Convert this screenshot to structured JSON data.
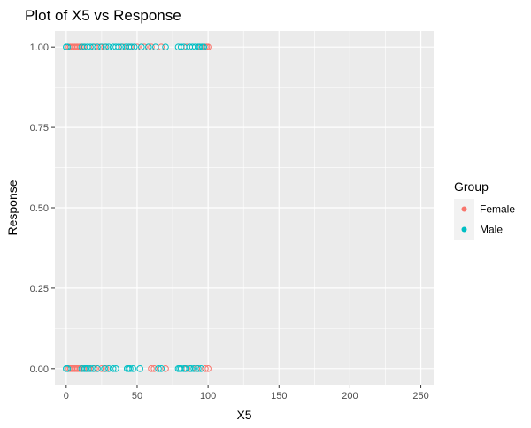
{
  "chart_data": {
    "type": "scatter",
    "title": "Plot of X5 vs Response",
    "xlabel": "X5",
    "ylabel": "Response",
    "xlim": [
      -8,
      259
    ],
    "ylim": [
      -0.05,
      1.05
    ],
    "x_ticks": [
      0,
      50,
      100,
      150,
      200,
      250
    ],
    "x_tick_labels": [
      "0",
      "50",
      "100",
      "150",
      "200",
      "250"
    ],
    "y_ticks": [
      0,
      0.25,
      0.5,
      0.75,
      1
    ],
    "y_tick_labels": [
      "0.00",
      "0.25",
      "0.50",
      "0.75",
      "1.00"
    ],
    "grid": true,
    "legend": {
      "title": "Group",
      "position": "right",
      "entries": [
        "Female",
        "Male"
      ]
    },
    "series": [
      {
        "name": "Female",
        "color": "#F8766D",
        "points": [
          {
            "x": 2,
            "y": 1
          },
          {
            "x": 3,
            "y": 1
          },
          {
            "x": 4,
            "y": 1
          },
          {
            "x": 5,
            "y": 1
          },
          {
            "x": 6,
            "y": 1
          },
          {
            "x": 7,
            "y": 1
          },
          {
            "x": 8,
            "y": 1
          },
          {
            "x": 9,
            "y": 1
          },
          {
            "x": 10,
            "y": 1
          },
          {
            "x": 12,
            "y": 1
          },
          {
            "x": 20,
            "y": 1
          },
          {
            "x": 24,
            "y": 1
          },
          {
            "x": 27,
            "y": 1
          },
          {
            "x": 40,
            "y": 1
          },
          {
            "x": 45,
            "y": 1
          },
          {
            "x": 50,
            "y": 1
          },
          {
            "x": 55,
            "y": 1
          },
          {
            "x": 60,
            "y": 1
          },
          {
            "x": 67,
            "y": 1
          },
          {
            "x": 85,
            "y": 1
          },
          {
            "x": 95,
            "y": 1
          },
          {
            "x": 98,
            "y": 1
          },
          {
            "x": 99,
            "y": 1
          },
          {
            "x": 100,
            "y": 1
          },
          {
            "x": 2,
            "y": 0
          },
          {
            "x": 3,
            "y": 0
          },
          {
            "x": 4,
            "y": 0
          },
          {
            "x": 5,
            "y": 0
          },
          {
            "x": 6,
            "y": 0
          },
          {
            "x": 7,
            "y": 0
          },
          {
            "x": 8,
            "y": 0
          },
          {
            "x": 9,
            "y": 0
          },
          {
            "x": 10,
            "y": 0
          },
          {
            "x": 12,
            "y": 0
          },
          {
            "x": 16,
            "y": 0
          },
          {
            "x": 20,
            "y": 0
          },
          {
            "x": 25,
            "y": 0
          },
          {
            "x": 28,
            "y": 0
          },
          {
            "x": 60,
            "y": 0
          },
          {
            "x": 62,
            "y": 0
          },
          {
            "x": 70,
            "y": 0
          },
          {
            "x": 85,
            "y": 0
          },
          {
            "x": 92,
            "y": 0
          },
          {
            "x": 98,
            "y": 0
          },
          {
            "x": 100,
            "y": 0
          }
        ]
      },
      {
        "name": "Male",
        "color": "#00BFC4",
        "points": [
          {
            "x": 0,
            "y": 1
          },
          {
            "x": 1,
            "y": 1
          },
          {
            "x": 11,
            "y": 1
          },
          {
            "x": 13,
            "y": 1
          },
          {
            "x": 15,
            "y": 1
          },
          {
            "x": 17,
            "y": 1
          },
          {
            "x": 19,
            "y": 1
          },
          {
            "x": 22,
            "y": 1
          },
          {
            "x": 25,
            "y": 1
          },
          {
            "x": 28,
            "y": 1
          },
          {
            "x": 30,
            "y": 1
          },
          {
            "x": 33,
            "y": 1
          },
          {
            "x": 35,
            "y": 1
          },
          {
            "x": 37,
            "y": 1
          },
          {
            "x": 39,
            "y": 1
          },
          {
            "x": 42,
            "y": 1
          },
          {
            "x": 44,
            "y": 1
          },
          {
            "x": 46,
            "y": 1
          },
          {
            "x": 48,
            "y": 1
          },
          {
            "x": 53,
            "y": 1
          },
          {
            "x": 58,
            "y": 1
          },
          {
            "x": 63,
            "y": 1
          },
          {
            "x": 70,
            "y": 1
          },
          {
            "x": 79,
            "y": 1
          },
          {
            "x": 81,
            "y": 1
          },
          {
            "x": 83,
            "y": 1
          },
          {
            "x": 87,
            "y": 1
          },
          {
            "x": 89,
            "y": 1
          },
          {
            "x": 91,
            "y": 1
          },
          {
            "x": 93,
            "y": 1
          },
          {
            "x": 94,
            "y": 1
          },
          {
            "x": 96,
            "y": 1
          },
          {
            "x": 97,
            "y": 1
          },
          {
            "x": 0,
            "y": 0
          },
          {
            "x": 1,
            "y": 0
          },
          {
            "x": 11,
            "y": 0
          },
          {
            "x": 13,
            "y": 0
          },
          {
            "x": 14,
            "y": 0
          },
          {
            "x": 15,
            "y": 0
          },
          {
            "x": 17,
            "y": 0
          },
          {
            "x": 19,
            "y": 0
          },
          {
            "x": 22,
            "y": 0
          },
          {
            "x": 27,
            "y": 0
          },
          {
            "x": 30,
            "y": 0
          },
          {
            "x": 33,
            "y": 0
          },
          {
            "x": 35,
            "y": 0
          },
          {
            "x": 43,
            "y": 0
          },
          {
            "x": 44,
            "y": 0
          },
          {
            "x": 45,
            "y": 0
          },
          {
            "x": 47,
            "y": 0
          },
          {
            "x": 52,
            "y": 0
          },
          {
            "x": 65,
            "y": 0
          },
          {
            "x": 67,
            "y": 0
          },
          {
            "x": 79,
            "y": 0
          },
          {
            "x": 80,
            "y": 0
          },
          {
            "x": 81,
            "y": 0
          },
          {
            "x": 83,
            "y": 0
          },
          {
            "x": 84,
            "y": 0
          },
          {
            "x": 87,
            "y": 0
          },
          {
            "x": 88,
            "y": 0
          },
          {
            "x": 90,
            "y": 0
          },
          {
            "x": 93,
            "y": 0
          },
          {
            "x": 95,
            "y": 0
          }
        ]
      }
    ]
  }
}
